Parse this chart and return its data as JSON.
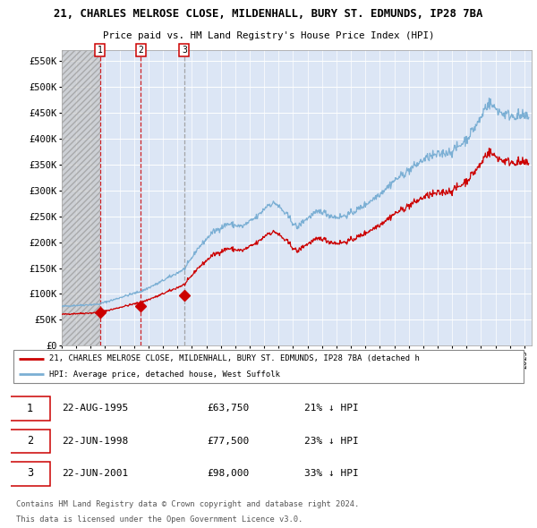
{
  "title_line1": "21, CHARLES MELROSE CLOSE, MILDENHALL, BURY ST. EDMUNDS, IP28 7BA",
  "title_line2": "Price paid vs. HM Land Registry's House Price Index (HPI)",
  "sales": [
    {
      "label": "1",
      "date_float": 1995.6383,
      "price": 63750
    },
    {
      "label": "2",
      "date_float": 1998.4712,
      "price": 77500
    },
    {
      "label": "3",
      "date_float": 2001.4712,
      "price": 98000
    }
  ],
  "legend_red": "21, CHARLES MELROSE CLOSE, MILDENHALL, BURY ST. EDMUNDS, IP28 7BA (detached h",
  "legend_blue": "HPI: Average price, detached house, West Suffolk",
  "table_rows": [
    {
      "num": "1",
      "date": "22-AUG-1995",
      "price": "£63,750",
      "hpi": "21% ↓ HPI"
    },
    {
      "num": "2",
      "date": "22-JUN-1998",
      "price": "£77,500",
      "hpi": "23% ↓ HPI"
    },
    {
      "num": "3",
      "date": "22-JUN-2001",
      "price": "£98,000",
      "hpi": "33% ↓ HPI"
    }
  ],
  "footer_line1": "Contains HM Land Registry data © Crown copyright and database right 2024.",
  "footer_line2": "This data is licensed under the Open Government Licence v3.0.",
  "ylim": [
    0,
    570000
  ],
  "yticks": [
    0,
    50000,
    100000,
    150000,
    200000,
    250000,
    300000,
    350000,
    400000,
    450000,
    500000,
    550000
  ],
  "plot_bg": "#dce6f5",
  "grid_color": "#ffffff",
  "red_color": "#cc0000",
  "blue_color": "#7bafd4",
  "hatch_bg": "#c8c8c8",
  "xlim_start": 1993.0,
  "xlim_end": 2025.5
}
